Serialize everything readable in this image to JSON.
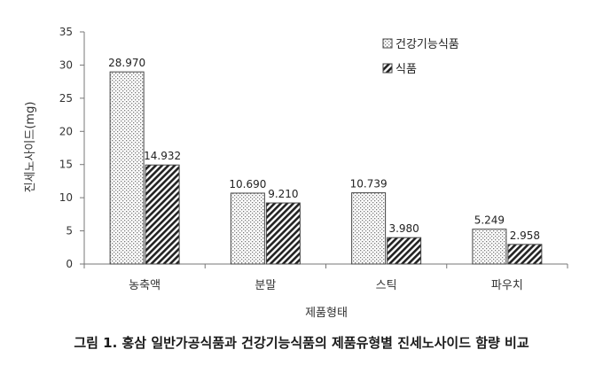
{
  "caption": "그림 1. 홍삼 일반가공식품과 건강기능식품의 제품유형별 진세노사이드 함량 비교",
  "chart_data": {
    "type": "bar",
    "title": "",
    "xlabel": "제품형태",
    "ylabel": "진세노사이드(mg)",
    "ylim": [
      0,
      35
    ],
    "yticks": [
      "0",
      "5",
      "10",
      "15",
      "20",
      "25",
      "30",
      "35"
    ],
    "categories": [
      "농축액",
      "분말",
      "스틱",
      "파우치"
    ],
    "series": [
      {
        "name": "건강기능식품",
        "values": [
          28.97,
          10.69,
          10.739,
          5.249
        ],
        "labels": [
          "28.970",
          "10.690",
          "10.739",
          "5.249"
        ],
        "pattern": "dots"
      },
      {
        "name": "식품",
        "values": [
          14.932,
          9.21,
          3.98,
          2.958
        ],
        "labels": [
          "14.932",
          "9.210",
          "3.980",
          "2.958"
        ],
        "pattern": "hatch"
      }
    ],
    "grid": false,
    "legend_position": "top-right"
  }
}
